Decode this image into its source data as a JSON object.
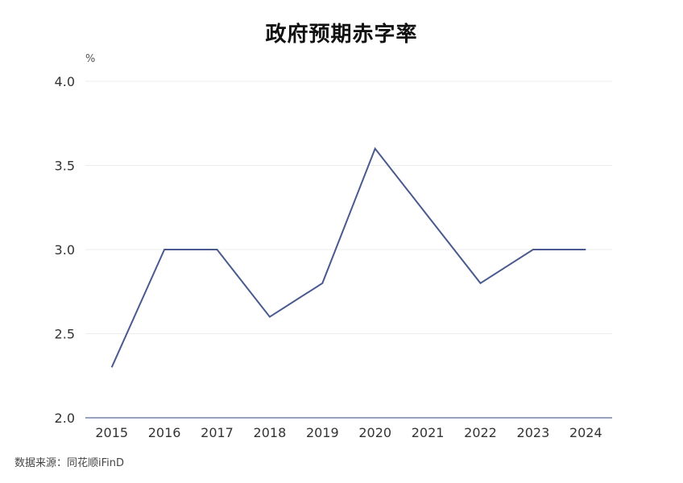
{
  "chart_data": {
    "type": "line",
    "title": "政府预期赤字率",
    "ylabel_unit": "%",
    "x": [
      "2015",
      "2016",
      "2017",
      "2018",
      "2019",
      "2020",
      "2021",
      "2022",
      "2023",
      "2024"
    ],
    "series": [
      {
        "values": [
          2.3,
          3.0,
          3.0,
          2.6,
          2.8,
          3.6,
          3.2,
          2.8,
          3.0,
          3.0
        ],
        "color": "#4a5a8f"
      }
    ],
    "ylim": [
      2.0,
      4.0
    ],
    "yticks": [
      "2.0",
      "2.5",
      "3.0",
      "3.5",
      "4.0"
    ],
    "grid": true,
    "legend": "none"
  },
  "source": "数据来源：同花顺iFinD"
}
